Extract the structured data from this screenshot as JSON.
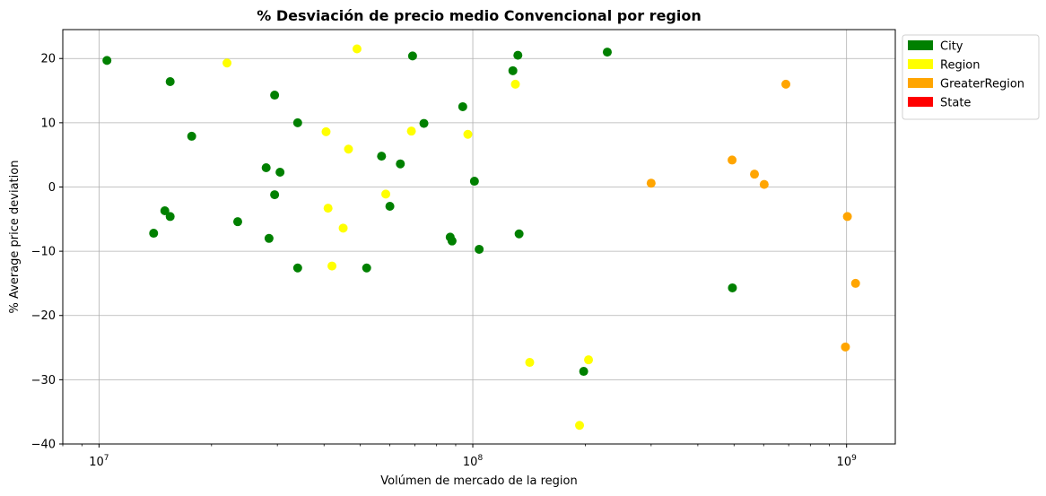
{
  "chart_data": {
    "type": "scatter",
    "title": "% Desviación de precio medio Convencional por region",
    "xlabel": "Volúmen de mercado de la region",
    "ylabel": "% Average price deviation",
    "xscale": "log",
    "xlim": [
      8000000,
      1350000000
    ],
    "ylim": [
      -40,
      24.5
    ],
    "xticks": [
      {
        "value": 10000000,
        "base": "10",
        "exp": "7"
      },
      {
        "value": 100000000,
        "base": "10",
        "exp": "8"
      },
      {
        "value": 1000000000,
        "base": "10",
        "exp": "9"
      }
    ],
    "yticks": [
      {
        "value": -40,
        "label": "−40"
      },
      {
        "value": -30,
        "label": "−30"
      },
      {
        "value": -20,
        "label": "−20"
      },
      {
        "value": -10,
        "label": "−10"
      },
      {
        "value": 0,
        "label": "0"
      },
      {
        "value": 10,
        "label": "10"
      },
      {
        "value": 20,
        "label": "20"
      }
    ],
    "grid": true,
    "legend_position": "outside-top-right",
    "series": [
      {
        "name": "City",
        "color": "#008000",
        "points": [
          [
            10500000,
            19.7
          ],
          [
            15500000,
            16.4
          ],
          [
            29500000,
            14.3
          ],
          [
            17700000,
            7.9
          ],
          [
            34000000,
            10.0
          ],
          [
            28000000,
            3.0
          ],
          [
            30500000,
            2.3
          ],
          [
            29500000,
            -1.2
          ],
          [
            15000000,
            -3.7
          ],
          [
            15500000,
            -4.6
          ],
          [
            14000000,
            -7.2
          ],
          [
            23500000,
            -5.4
          ],
          [
            28500000,
            -8.0
          ],
          [
            34000000,
            -12.6
          ],
          [
            52000000,
            -12.6
          ],
          [
            57000000,
            4.8
          ],
          [
            64000000,
            3.6
          ],
          [
            60000000,
            -3.0
          ],
          [
            69000000,
            20.4
          ],
          [
            74000000,
            9.9
          ],
          [
            87000000,
            -7.8
          ],
          [
            88000000,
            -8.4
          ],
          [
            94000000,
            12.5
          ],
          [
            101000000,
            0.9
          ],
          [
            104000000,
            -9.7
          ],
          [
            128000000,
            18.1
          ],
          [
            132000000,
            20.5
          ],
          [
            133000000,
            -7.3
          ],
          [
            229000000,
            21.0
          ],
          [
            198000000,
            -28.7
          ],
          [
            495000000,
            -15.7
          ]
        ]
      },
      {
        "name": "Region",
        "color": "#ffff00",
        "points": [
          [
            22000000,
            19.3
          ],
          [
            49000000,
            21.5
          ],
          [
            40500000,
            8.6
          ],
          [
            46500000,
            5.9
          ],
          [
            68500000,
            8.7
          ],
          [
            97000000,
            8.2
          ],
          [
            130000000,
            16.0
          ],
          [
            41000000,
            -3.3
          ],
          [
            58500000,
            -1.1
          ],
          [
            45000000,
            -6.4
          ],
          [
            42000000,
            -12.3
          ],
          [
            142000000,
            -27.3
          ],
          [
            204000000,
            -26.9
          ],
          [
            193000000,
            -37.1
          ]
        ]
      },
      {
        "name": "GreaterRegion",
        "color": "#ffa500",
        "points": [
          [
            688000000,
            16.0
          ],
          [
            494000000,
            4.2
          ],
          [
            300000000,
            0.6
          ],
          [
            567000000,
            2.0
          ],
          [
            602000000,
            0.4
          ],
          [
            1005000000,
            -4.6
          ],
          [
            1057000000,
            -15.0
          ],
          [
            993000000,
            -24.9
          ]
        ]
      },
      {
        "name": "State",
        "color": "#ff0000",
        "points": []
      }
    ]
  }
}
